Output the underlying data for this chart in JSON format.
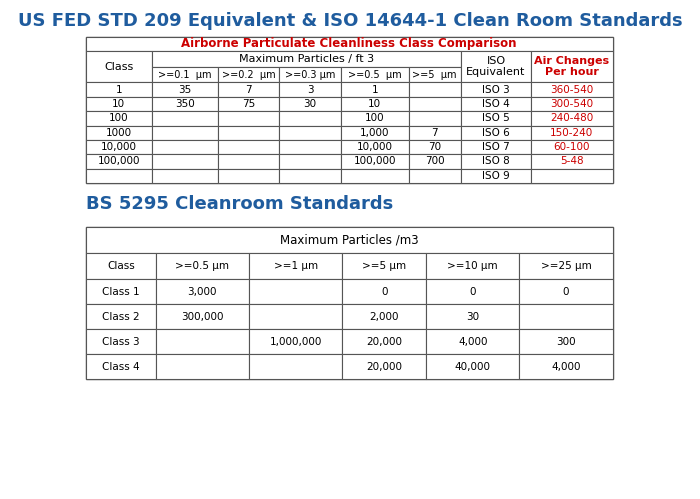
{
  "title1": "US FED STD 209 Equivalent & ISO 14644-1 Clean Room Standards",
  "title1_color": "#1F5C9E",
  "subtitle1": "Airborne Particulate Cleanliness Class Comparison",
  "subtitle1_color": "#CC0000",
  "table1_header1": [
    "Class",
    ">=0.1  μm",
    ">=0.2  μm",
    ">=0.3 μm",
    ">=0.5  μm",
    ">=5  μm",
    "ISO\nEquivalent",
    "Air Changes\nPer hour"
  ],
  "table1_subheader": "Maximum Particles / ft 3",
  "table1_data": [
    [
      "1",
      "35",
      "7",
      "3",
      "1",
      "",
      "ISO 3",
      "360-540"
    ],
    [
      "10",
      "350",
      "75",
      "30",
      "10",
      "",
      "ISO 4",
      "300-540"
    ],
    [
      "100",
      "",
      "",
      "",
      "100",
      "",
      "ISO 5",
      "240-480"
    ],
    [
      "1000",
      "",
      "",
      "",
      "1,000",
      "7",
      "ISO 6",
      "150-240"
    ],
    [
      "10,000",
      "",
      "",
      "",
      "10,000",
      "70",
      "ISO 7",
      "60-100"
    ],
    [
      "100,000",
      "",
      "",
      "",
      "100,000",
      "700",
      "ISO 8",
      "5-48"
    ],
    [
      "",
      "",
      "",
      "",
      "",
      "",
      "ISO 9",
      ""
    ]
  ],
  "air_changes_color": "#CC0000",
  "title2": "BS 5295 Cleanroom Standards",
  "title2_color": "#1F5C9E",
  "table2_header": [
    "Class",
    ">=0.5 μm",
    ">=1 μm",
    ">=5 μm",
    ">=10 μm",
    ">=25 μm"
  ],
  "table2_subheader": "Maximum Particles /m3",
  "table2_data": [
    [
      "Class 1",
      "3,000",
      "",
      "0",
      "0",
      "0"
    ],
    [
      "Class 2",
      "300,000",
      "",
      "2,000",
      "30",
      ""
    ],
    [
      "Class 3",
      "",
      "1,000,000",
      "20,000",
      "4,000",
      "300"
    ],
    [
      "Class 4",
      "",
      "",
      "20,000",
      "40,000",
      "4,000"
    ]
  ],
  "bg_color": "#FFFFFF",
  "table_border_color": "#555555",
  "header_bg": "#F5F5F5",
  "cell_bg": "#FFFFFF"
}
